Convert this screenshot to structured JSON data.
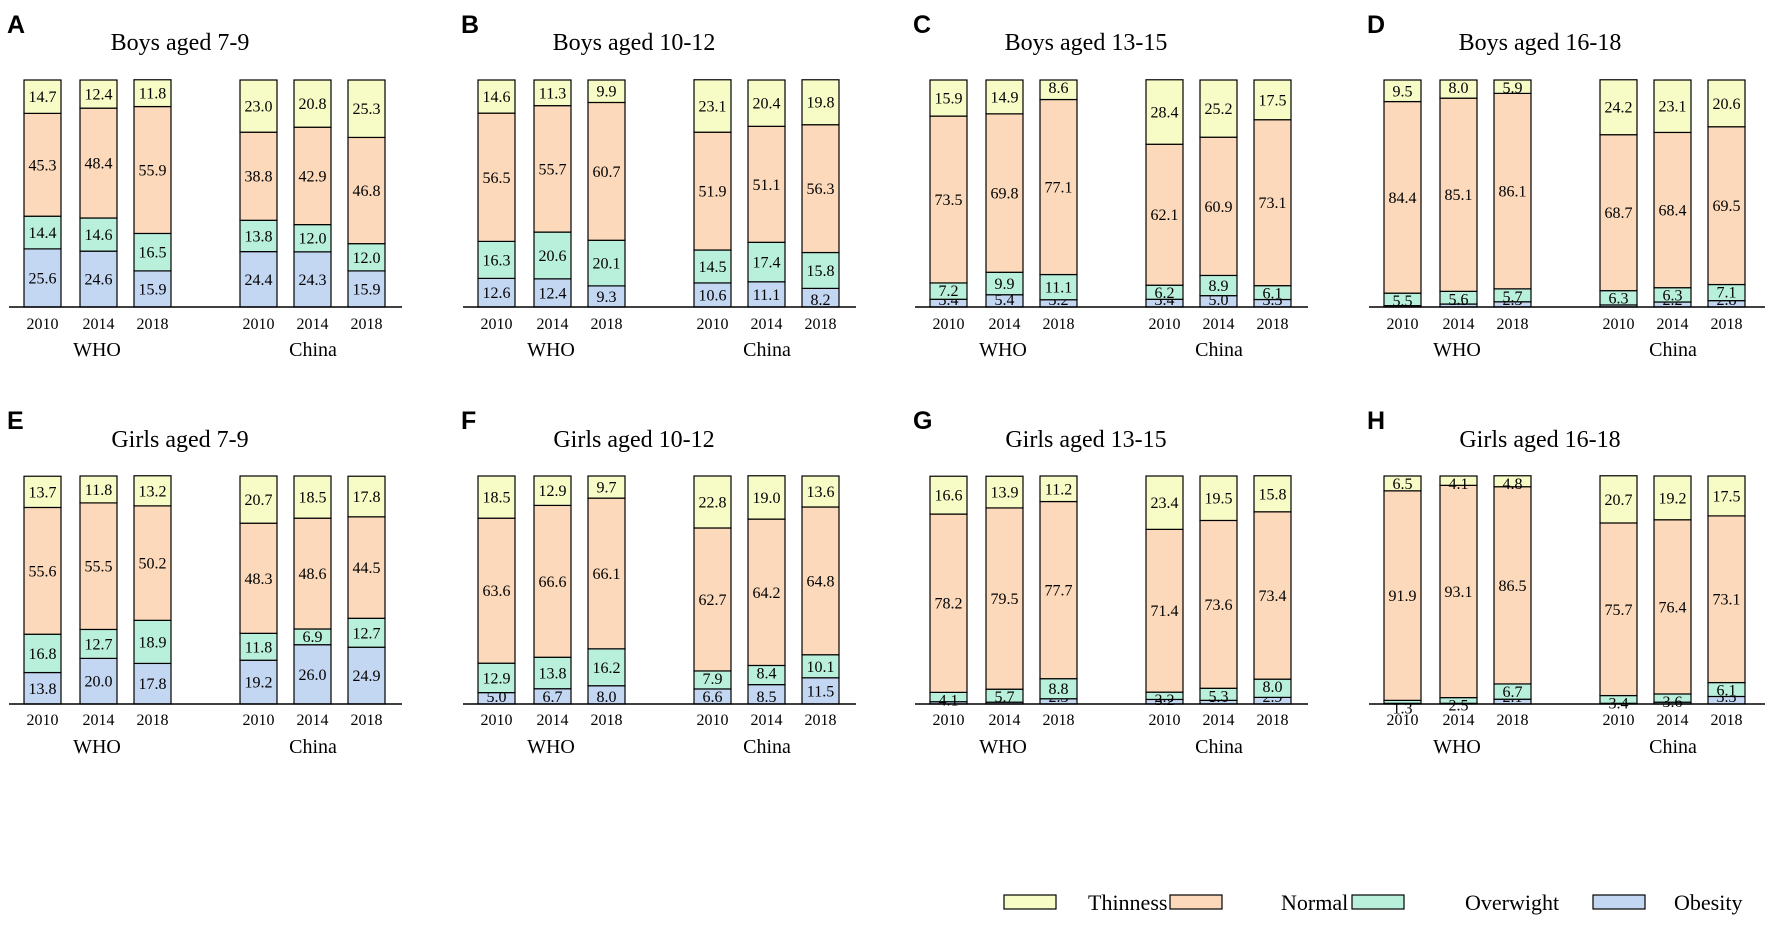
{
  "colors": {
    "thinness": "#f7fbc6",
    "normal": "#fcd9ba",
    "overweight": "#b9f0db",
    "obesity": "#c3d6f2"
  },
  "legend": [
    "Thinness",
    "Normal",
    "Overwight",
    "Obesity"
  ],
  "chart_data": [
    {
      "type": "bar",
      "stacked": true,
      "letter": "A",
      "title": "Boys aged 7-9",
      "groups": [
        "WHO",
        "China"
      ],
      "years": [
        "2010",
        "2014",
        "2018"
      ],
      "bars": [
        {
          "group": "WHO",
          "year": "2010",
          "values": {
            "obesity": 25.6,
            "overweight": 14.4,
            "normal": 45.3,
            "thinness": 14.7
          }
        },
        {
          "group": "WHO",
          "year": "2014",
          "values": {
            "obesity": 24.6,
            "overweight": 14.6,
            "normal": 48.4,
            "thinness": 12.4
          }
        },
        {
          "group": "WHO",
          "year": "2018",
          "values": {
            "obesity": 15.9,
            "overweight": 16.5,
            "normal": 55.9,
            "thinness": 11.8
          }
        },
        {
          "group": "China",
          "year": "2010",
          "values": {
            "obesity": 24.4,
            "overweight": 13.8,
            "normal": 38.8,
            "thinness": 23.0
          }
        },
        {
          "group": "China",
          "year": "2014",
          "values": {
            "obesity": 24.3,
            "overweight": 12.0,
            "normal": 42.9,
            "thinness": 20.8
          }
        },
        {
          "group": "China",
          "year": "2018",
          "values": {
            "obesity": 15.9,
            "overweight": 12.0,
            "normal": 46.8,
            "thinness": 25.3
          }
        }
      ]
    },
    {
      "type": "bar",
      "stacked": true,
      "letter": "B",
      "title": "Boys aged 10-12",
      "groups": [
        "WHO",
        "China"
      ],
      "years": [
        "2010",
        "2014",
        "2018"
      ],
      "bars": [
        {
          "group": "WHO",
          "year": "2010",
          "values": {
            "obesity": 12.6,
            "overweight": 16.3,
            "normal": 56.5,
            "thinness": 14.6
          }
        },
        {
          "group": "WHO",
          "year": "2014",
          "values": {
            "obesity": 12.4,
            "overweight": 20.6,
            "normal": 55.7,
            "thinness": 11.3
          }
        },
        {
          "group": "WHO",
          "year": "2018",
          "values": {
            "obesity": 9.3,
            "overweight": 20.1,
            "normal": 60.7,
            "thinness": 9.9
          }
        },
        {
          "group": "China",
          "year": "2010",
          "values": {
            "obesity": 10.6,
            "overweight": 14.5,
            "normal": 51.9,
            "thinness": 23.1
          }
        },
        {
          "group": "China",
          "year": "2014",
          "values": {
            "obesity": 11.1,
            "overweight": 17.4,
            "normal": 51.1,
            "thinness": 20.4
          }
        },
        {
          "group": "China",
          "year": "2018",
          "values": {
            "obesity": 8.2,
            "overweight": 15.8,
            "normal": 56.3,
            "thinness": 19.8
          }
        }
      ]
    },
    {
      "type": "bar",
      "stacked": true,
      "letter": "C",
      "title": "Boys aged 13-15",
      "groups": [
        "WHO",
        "China"
      ],
      "years": [
        "2010",
        "2014",
        "2018"
      ],
      "bars": [
        {
          "group": "WHO",
          "year": "2010",
          "values": {
            "obesity": 3.4,
            "overweight": 7.2,
            "normal": 73.5,
            "thinness": 15.9
          }
        },
        {
          "group": "WHO",
          "year": "2014",
          "values": {
            "obesity": 5.4,
            "overweight": 9.9,
            "normal": 69.8,
            "thinness": 14.9
          }
        },
        {
          "group": "WHO",
          "year": "2018",
          "values": {
            "obesity": 3.2,
            "overweight": 11.1,
            "normal": 77.1,
            "thinness": 8.6
          }
        },
        {
          "group": "China",
          "year": "2010",
          "values": {
            "obesity": 3.4,
            "overweight": 6.2,
            "normal": 62.1,
            "thinness": 28.4
          }
        },
        {
          "group": "China",
          "year": "2014",
          "values": {
            "obesity": 5.0,
            "overweight": 8.9,
            "normal": 60.9,
            "thinness": 25.2
          }
        },
        {
          "group": "China",
          "year": "2018",
          "values": {
            "obesity": 3.3,
            "overweight": 6.1,
            "normal": 73.1,
            "thinness": 17.5
          }
        }
      ]
    },
    {
      "type": "bar",
      "stacked": true,
      "letter": "D",
      "title": "Boys aged 16-18",
      "groups": [
        "WHO",
        "China"
      ],
      "years": [
        "2010",
        "2014",
        "2018"
      ],
      "bars": [
        {
          "group": "WHO",
          "year": "2010",
          "values": {
            "obesity": 0.6,
            "overweight": 5.5,
            "normal": 84.4,
            "thinness": 9.5
          }
        },
        {
          "group": "WHO",
          "year": "2014",
          "values": {
            "obesity": 1.3,
            "overweight": 5.6,
            "normal": 85.1,
            "thinness": 8.0
          }
        },
        {
          "group": "WHO",
          "year": "2018",
          "values": {
            "obesity": 2.3,
            "overweight": 5.7,
            "normal": 86.1,
            "thinness": 5.9
          }
        },
        {
          "group": "China",
          "year": "2010",
          "values": {
            "obesity": 0.9,
            "overweight": 6.3,
            "normal": 68.7,
            "thinness": 24.2
          }
        },
        {
          "group": "China",
          "year": "2014",
          "values": {
            "obesity": 2.2,
            "overweight": 6.3,
            "normal": 68.4,
            "thinness": 23.1
          }
        },
        {
          "group": "China",
          "year": "2018",
          "values": {
            "obesity": 2.8,
            "overweight": 7.1,
            "normal": 69.5,
            "thinness": 20.6
          }
        }
      ]
    },
    {
      "type": "bar",
      "stacked": true,
      "letter": "E",
      "title": "Girls aged 7-9",
      "groups": [
        "WHO",
        "China"
      ],
      "years": [
        "2010",
        "2014",
        "2018"
      ],
      "bars": [
        {
          "group": "WHO",
          "year": "2010",
          "values": {
            "obesity": 13.8,
            "overweight": 16.8,
            "normal": 55.6,
            "thinness": 13.7
          }
        },
        {
          "group": "WHO",
          "year": "2014",
          "values": {
            "obesity": 20.0,
            "overweight": 12.7,
            "normal": 55.5,
            "thinness": 11.8
          }
        },
        {
          "group": "WHO",
          "year": "2018",
          "values": {
            "obesity": 17.8,
            "overweight": 18.9,
            "normal": 50.2,
            "thinness": 13.2
          }
        },
        {
          "group": "China",
          "year": "2010",
          "values": {
            "obesity": 19.2,
            "overweight": 11.8,
            "normal": 48.3,
            "thinness": 20.7
          }
        },
        {
          "group": "China",
          "year": "2014",
          "values": {
            "obesity": 26.0,
            "overweight": 6.9,
            "normal": 48.6,
            "thinness": 18.5
          }
        },
        {
          "group": "China",
          "year": "2018",
          "values": {
            "obesity": 24.9,
            "overweight": 12.7,
            "normal": 44.5,
            "thinness": 17.8
          }
        }
      ]
    },
    {
      "type": "bar",
      "stacked": true,
      "letter": "F",
      "title": "Girls aged 10-12",
      "groups": [
        "WHO",
        "China"
      ],
      "years": [
        "2010",
        "2014",
        "2018"
      ],
      "bars": [
        {
          "group": "WHO",
          "year": "2010",
          "values": {
            "obesity": 5.0,
            "overweight": 12.9,
            "normal": 63.6,
            "thinness": 18.5
          }
        },
        {
          "group": "WHO",
          "year": "2014",
          "values": {
            "obesity": 6.7,
            "overweight": 13.8,
            "normal": 66.6,
            "thinness": 12.9
          }
        },
        {
          "group": "WHO",
          "year": "2018",
          "values": {
            "obesity": 8.0,
            "overweight": 16.2,
            "normal": 66.1,
            "thinness": 9.7
          }
        },
        {
          "group": "China",
          "year": "2010",
          "values": {
            "obesity": 6.6,
            "overweight": 7.9,
            "normal": 62.7,
            "thinness": 22.8
          }
        },
        {
          "group": "China",
          "year": "2014",
          "values": {
            "obesity": 8.5,
            "overweight": 8.4,
            "normal": 64.2,
            "thinness": 19.0
          }
        },
        {
          "group": "China",
          "year": "2018",
          "values": {
            "obesity": 11.5,
            "overweight": 10.1,
            "normal": 64.8,
            "thinness": 13.6
          }
        }
      ]
    },
    {
      "type": "bar",
      "stacked": true,
      "letter": "G",
      "title": "Girls aged 13-15",
      "groups": [
        "WHO",
        "China"
      ],
      "years": [
        "2010",
        "2014",
        "2018"
      ],
      "bars": [
        {
          "group": "WHO",
          "year": "2010",
          "values": {
            "obesity": 1.0,
            "overweight": 4.1,
            "normal": 78.2,
            "thinness": 16.6
          }
        },
        {
          "group": "WHO",
          "year": "2014",
          "values": {
            "obesity": 0.8,
            "overweight": 5.7,
            "normal": 79.5,
            "thinness": 13.9
          }
        },
        {
          "group": "WHO",
          "year": "2018",
          "values": {
            "obesity": 2.3,
            "overweight": 8.8,
            "normal": 77.7,
            "thinness": 11.2
          }
        },
        {
          "group": "China",
          "year": "2010",
          "values": {
            "obesity": 2.0,
            "overweight": 3.2,
            "normal": 71.4,
            "thinness": 23.4
          }
        },
        {
          "group": "China",
          "year": "2014",
          "values": {
            "obesity": 1.6,
            "overweight": 5.3,
            "normal": 73.6,
            "thinness": 19.5
          }
        },
        {
          "group": "China",
          "year": "2018",
          "values": {
            "obesity": 2.9,
            "overweight": 8.0,
            "normal": 73.4,
            "thinness": 15.8
          }
        }
      ]
    },
    {
      "type": "bar",
      "stacked": true,
      "letter": "H",
      "title": "Girls aged 16-18",
      "groups": [
        "WHO",
        "China"
      ],
      "years": [
        "2010",
        "2014",
        "2018"
      ],
      "bars": [
        {
          "group": "WHO",
          "year": "2010",
          "values": {
            "obesity": 0.3,
            "overweight": 1.3,
            "normal": 91.9,
            "thinness": 6.5
          }
        },
        {
          "group": "WHO",
          "year": "2014",
          "values": {
            "obesity": 0.3,
            "overweight": 2.5,
            "normal": 93.1,
            "thinness": 4.1
          }
        },
        {
          "group": "WHO",
          "year": "2018",
          "values": {
            "obesity": 2.1,
            "overweight": 6.7,
            "normal": 86.5,
            "thinness": 4.8
          }
        },
        {
          "group": "China",
          "year": "2010",
          "values": {
            "obesity": 0.3,
            "overweight": 3.4,
            "normal": 75.7,
            "thinness": 20.7
          }
        },
        {
          "group": "China",
          "year": "2014",
          "values": {
            "obesity": 0.8,
            "overweight": 3.6,
            "normal": 76.4,
            "thinness": 19.2
          }
        },
        {
          "group": "China",
          "year": "2018",
          "values": {
            "obesity": 3.3,
            "overweight": 6.1,
            "normal": 73.1,
            "thinness": 17.5
          }
        }
      ]
    }
  ]
}
